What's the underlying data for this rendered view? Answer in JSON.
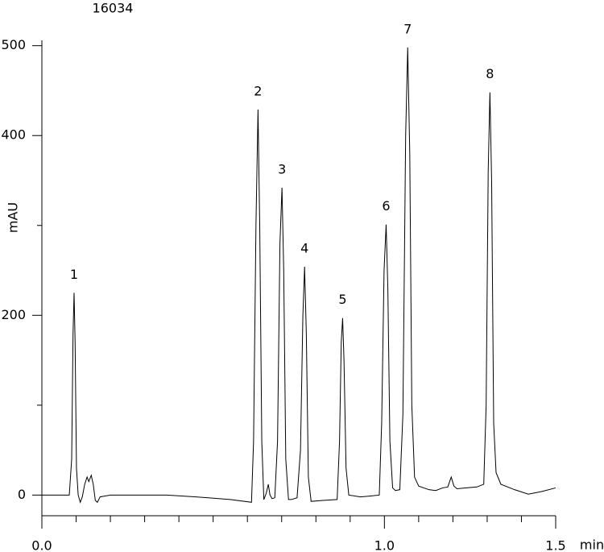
{
  "chart_data": {
    "type": "line",
    "title": "16034",
    "y_label": "mAU",
    "x_label": "min",
    "xlim": [
      0,
      1.5
    ],
    "ylim": [
      -23,
      506
    ],
    "xticks": [
      {
        "value": 0,
        "label": "0.0"
      },
      {
        "value": 1,
        "label": "1.0"
      },
      1.5
    ],
    "xminor_ticks": [
      0.1,
      0.2,
      0.3,
      0.4,
      0.5,
      0.6,
      0.7,
      0.8,
      0.9,
      1.1,
      1.2,
      1.3,
      1.4
    ],
    "yticks": [
      0,
      200,
      400,
      500
    ],
    "yminor_ticks": [
      100,
      300
    ],
    "series": [
      {
        "color": "#000000",
        "x": [
          0,
          0.08,
          0.087,
          0.091,
          0.094,
          0.097,
          0.101,
          0.106,
          0.112,
          0.118,
          0.125,
          0.132,
          0.137,
          0.144,
          0.15,
          0.156,
          0.162,
          0.17,
          0.2,
          0.365,
          0.45,
          0.55,
          0.612,
          0.618,
          0.625,
          0.631,
          0.636,
          0.642,
          0.648,
          0.655,
          0.661,
          0.666,
          0.672,
          0.68,
          0.688,
          0.695,
          0.701,
          0.706,
          0.712,
          0.72,
          0.728,
          0.745,
          0.755,
          0.762,
          0.767,
          0.772,
          0.778,
          0.786,
          0.82,
          0.862,
          0.869,
          0.874,
          0.878,
          0.882,
          0.888,
          0.896,
          0.93,
          0.96,
          0.985,
          0.992,
          0.999,
          1.005,
          1.01,
          1.016,
          1.024,
          1.032,
          1.045,
          1.054,
          1.062,
          1.068,
          1.074,
          1.08,
          1.088,
          1.1,
          1.13,
          1.15,
          1.17,
          1.185,
          1.195,
          1.203,
          1.212,
          1.24,
          1.27,
          1.29,
          1.297,
          1.303,
          1.308,
          1.313,
          1.319,
          1.326,
          1.34,
          1.38,
          1.42,
          1.46,
          1.5
        ],
        "values": [
          0,
          0,
          40,
          180,
          225,
          170,
          30,
          0,
          -8,
          -2,
          12,
          20,
          15,
          22,
          12,
          -6,
          -8,
          -2,
          0,
          0,
          -2,
          -5,
          -8,
          60,
          300,
          429,
          300,
          60,
          -5,
          2,
          12,
          0,
          -4,
          -3,
          60,
          280,
          342,
          250,
          40,
          -5,
          -5,
          -3,
          50,
          200,
          254,
          180,
          20,
          -7,
          -6,
          -5,
          60,
          170,
          197,
          150,
          30,
          0,
          -2,
          -1,
          0,
          80,
          250,
          301,
          230,
          60,
          8,
          5,
          6,
          90,
          400,
          498,
          380,
          100,
          20,
          10,
          6,
          5,
          8,
          9,
          20,
          10,
          7,
          8,
          9,
          12,
          100,
          360,
          448,
          350,
          80,
          25,
          12,
          6,
          1,
          4,
          8
        ]
      }
    ],
    "peaks": [
      {
        "label": "1",
        "x": 0.094,
        "y": 225
      },
      {
        "label": "2",
        "x": 0.631,
        "y": 429
      },
      {
        "label": "3",
        "x": 0.701,
        "y": 342
      },
      {
        "label": "4",
        "x": 0.767,
        "y": 254
      },
      {
        "label": "5",
        "x": 0.878,
        "y": 197
      },
      {
        "label": "6",
        "x": 1.005,
        "y": 301
      },
      {
        "label": "7",
        "x": 1.068,
        "y": 498
      },
      {
        "label": "8",
        "x": 1.308,
        "y": 448
      }
    ]
  }
}
